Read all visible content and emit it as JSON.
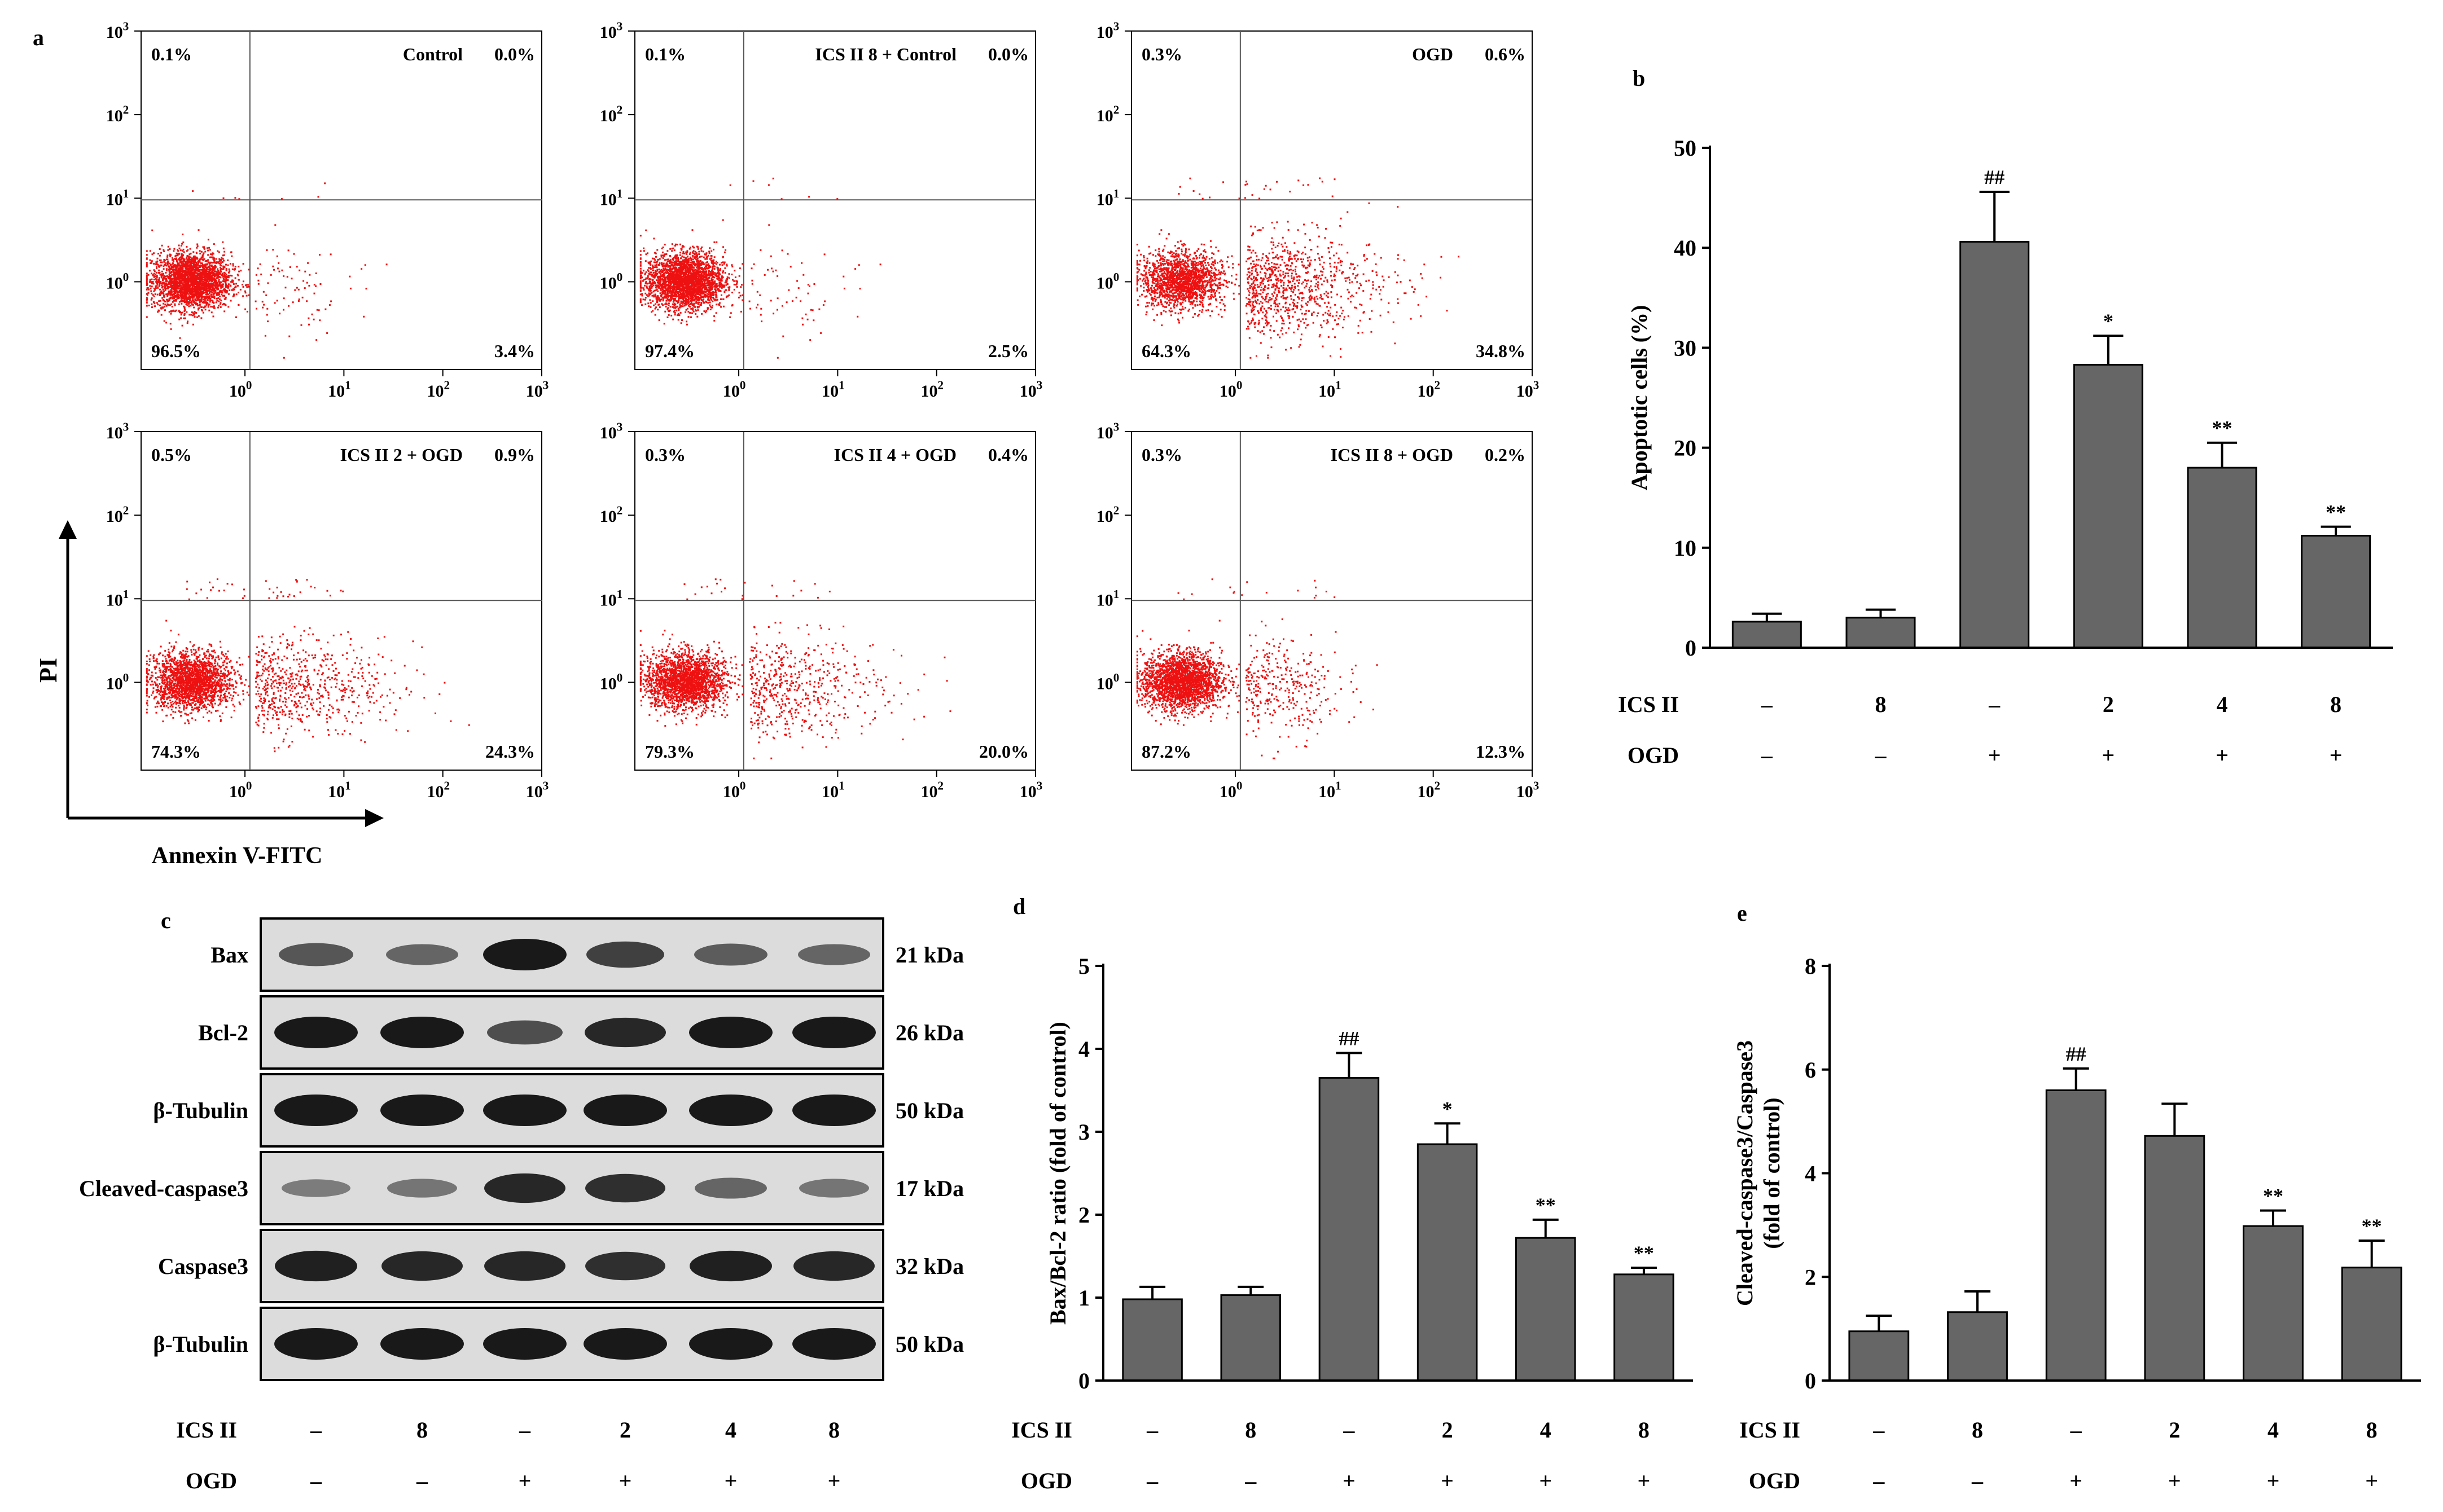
{
  "panel_letters": {
    "a": "a",
    "b": "b",
    "c": "c",
    "d": "d",
    "e": "e"
  },
  "colors": {
    "dots": "#ee1111",
    "bar": "#666666",
    "axis": "#000000",
    "blot_bg": "#dcdcdc",
    "blot_band": "#111111"
  },
  "treatments": {
    "ics_label": "ICS II",
    "ogd_label": "OGD",
    "ics_values": [
      "–",
      "8",
      "–",
      "2",
      "4",
      "8"
    ],
    "ogd_values": [
      "–",
      "–",
      "+",
      "+",
      "+",
      "+"
    ]
  },
  "flow": {
    "y_axis_label": "PI",
    "x_axis_label": "Annexin V-FITC",
    "tick_base": "10",
    "tick_exponents": [
      "0",
      "1",
      "2",
      "3"
    ],
    "panels": [
      {
        "title": "Control",
        "ul": "0.1%",
        "ur": "0.0%",
        "ll": "96.5%",
        "lr": "3.4%"
      },
      {
        "title": "ICS II 8 + Control",
        "ul": "0.1%",
        "ur": "0.0%",
        "ll": "97.4%",
        "lr": "2.5%"
      },
      {
        "title": "OGD",
        "ul": "0.3%",
        "ur": "0.6%",
        "ll": "64.3%",
        "lr": "34.8%"
      },
      {
        "title": "ICS II 2 + OGD",
        "ul": "0.5%",
        "ur": "0.9%",
        "ll": "74.3%",
        "lr": "24.3%"
      },
      {
        "title": "ICS II 4 + OGD",
        "ul": "0.3%",
        "ur": "0.4%",
        "ll": "79.3%",
        "lr": "20.0%"
      },
      {
        "title": "ICS II 8 + OGD",
        "ul": "0.3%",
        "ur": "0.2%",
        "ll": "87.2%",
        "lr": "12.3%"
      }
    ]
  },
  "western": {
    "rows": [
      {
        "protein": "Bax",
        "size": "21 kDa",
        "intensity": [
          0.55,
          0.45,
          0.95,
          0.7,
          0.5,
          0.45
        ]
      },
      {
        "protein": "Bcl-2",
        "size": "26 kDa",
        "intensity": [
          0.95,
          0.95,
          0.6,
          0.85,
          0.95,
          0.95
        ]
      },
      {
        "protein": "β-Tubulin",
        "size": "50 kDa",
        "intensity": [
          0.95,
          0.95,
          0.95,
          0.95,
          0.95,
          0.95
        ]
      },
      {
        "protein": "Cleaved-caspase3",
        "size": "17 kDa",
        "intensity": [
          0.3,
          0.35,
          0.85,
          0.8,
          0.45,
          0.35
        ]
      },
      {
        "protein": "Caspase3",
        "size": "32 kDa",
        "intensity": [
          0.9,
          0.85,
          0.85,
          0.8,
          0.9,
          0.85
        ]
      },
      {
        "protein": "β-Tubulin",
        "size": "50 kDa",
        "intensity": [
          0.95,
          0.95,
          0.95,
          0.95,
          0.95,
          0.95
        ]
      }
    ]
  },
  "chart_data": [
    {
      "type": "scatter",
      "panel": "a",
      "xlabel": "Annexin V-FITC",
      "ylabel": "PI",
      "xlim_log10": [
        -1.05,
        3
      ],
      "ylim_log10": [
        -1.05,
        3
      ],
      "gate_log10": {
        "x": 0.05,
        "y": 0.98
      },
      "series": [
        {
          "name": "Control",
          "quadrants_percent": {
            "ul": 0.1,
            "ur": 0.0,
            "ll": 96.5,
            "lr": 3.4
          }
        },
        {
          "name": "ICS II 8 + Control",
          "quadrants_percent": {
            "ul": 0.1,
            "ur": 0.0,
            "ll": 97.4,
            "lr": 2.5
          }
        },
        {
          "name": "OGD",
          "quadrants_percent": {
            "ul": 0.3,
            "ur": 0.6,
            "ll": 64.3,
            "lr": 34.8
          }
        },
        {
          "name": "ICS II 2 + OGD",
          "quadrants_percent": {
            "ul": 0.5,
            "ur": 0.9,
            "ll": 74.3,
            "lr": 24.3
          }
        },
        {
          "name": "ICS II 4 + OGD",
          "quadrants_percent": {
            "ul": 0.3,
            "ur": 0.4,
            "ll": 79.3,
            "lr": 20.0
          }
        },
        {
          "name": "ICS II 8 + OGD",
          "quadrants_percent": {
            "ul": 0.3,
            "ur": 0.2,
            "ll": 87.2,
            "lr": 12.3
          }
        }
      ]
    },
    {
      "type": "bar",
      "panel": "b",
      "ylabel": "Apoptotic cells (%)",
      "ylim": [
        0,
        50
      ],
      "yticks": [
        0,
        10,
        20,
        30,
        40,
        50
      ],
      "values": [
        2.6,
        3.0,
        40.6,
        28.3,
        18.0,
        11.2
      ],
      "errors": [
        0.8,
        0.8,
        5.0,
        2.9,
        2.5,
        0.9
      ],
      "annotations": [
        "",
        "",
        "##",
        "*",
        "**",
        "**"
      ]
    },
    {
      "type": "bar",
      "panel": "d",
      "ylabel": "Bax/Bcl-2 ratio (fold of control)",
      "ylim": [
        0,
        5
      ],
      "yticks": [
        0,
        1,
        2,
        3,
        4,
        5
      ],
      "values": [
        0.98,
        1.03,
        3.65,
        2.85,
        1.72,
        1.28
      ],
      "errors": [
        0.15,
        0.1,
        0.3,
        0.25,
        0.22,
        0.08
      ],
      "annotations": [
        "",
        "",
        "##",
        "*",
        "**",
        "**"
      ]
    },
    {
      "type": "bar",
      "panel": "e",
      "ylabel": "Cleaved-caspase3/Caspase3",
      "ylabel2": "(fold of control)",
      "ylim": [
        0,
        8
      ],
      "yticks": [
        0,
        2,
        4,
        6,
        8
      ],
      "values": [
        0.95,
        1.32,
        5.6,
        4.72,
        2.98,
        2.18
      ],
      "errors": [
        0.3,
        0.4,
        0.42,
        0.62,
        0.3,
        0.52
      ],
      "annotations": [
        "",
        "",
        "##",
        "",
        "**",
        "**"
      ]
    }
  ]
}
